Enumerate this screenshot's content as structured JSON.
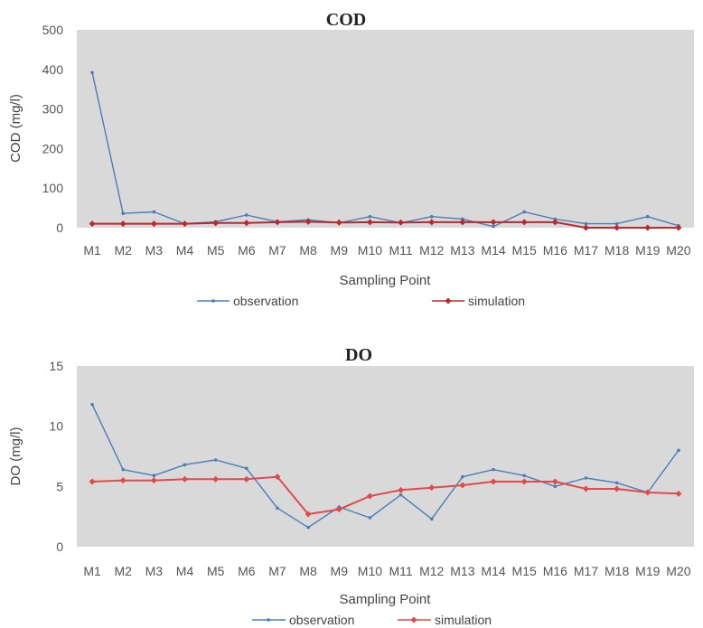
{
  "chart_data": [
    {
      "type": "line",
      "title": "COD",
      "xlabel": "Sampling Point",
      "ylabel": "COD (mg/l)",
      "ylim": [
        0,
        500
      ],
      "yticks": [
        "0",
        "100",
        "200",
        "300",
        "400",
        "500"
      ],
      "grid": false,
      "legend": "bottom",
      "categories": [
        "M1",
        "M2",
        "M3",
        "M4",
        "M5",
        "M6",
        "M7",
        "M8",
        "M9",
        "M10",
        "M11",
        "M12",
        "M13",
        "M14",
        "M15",
        "M16",
        "M17",
        "M18",
        "M19",
        "M20"
      ],
      "series": [
        {
          "name": "observation",
          "color": "#4a7ebb",
          "marker": "dot",
          "values": [
            392,
            36,
            40,
            10,
            15,
            32,
            15,
            20,
            12,
            28,
            12,
            28,
            22,
            3,
            40,
            22,
            10,
            10,
            28,
            5
          ]
        },
        {
          "name": "simulation",
          "color": "#c0272d",
          "marker": "diamond",
          "values": [
            10,
            10,
            10,
            10,
            12,
            12,
            14,
            15,
            13,
            14,
            13,
            14,
            14,
            14,
            14,
            14,
            0,
            0,
            0,
            0
          ]
        }
      ]
    },
    {
      "type": "line",
      "title": "DO",
      "xlabel": "Sampling Point",
      "ylabel": "DO (mg/l)",
      "ylim": [
        0,
        15
      ],
      "yticks": [
        "0",
        "5",
        "10",
        "15"
      ],
      "grid": false,
      "legend": "bottom",
      "categories": [
        "M1",
        "M2",
        "M3",
        "M4",
        "M5",
        "M6",
        "M7",
        "M8",
        "M9",
        "M10",
        "M11",
        "M12",
        "M13",
        "M14",
        "M15",
        "M16",
        "M17",
        "M18",
        "M19",
        "M20"
      ],
      "series": [
        {
          "name": "observation",
          "color": "#4a7ebb",
          "marker": "dot",
          "values": [
            11.8,
            6.4,
            5.9,
            6.8,
            7.2,
            6.5,
            3.2,
            1.6,
            3.3,
            2.4,
            4.3,
            2.3,
            5.8,
            6.4,
            5.9,
            5.0,
            5.7,
            5.3,
            4.5,
            8.0
          ]
        },
        {
          "name": "simulation",
          "color": "#e04a4a",
          "marker": "diamond",
          "values": [
            5.4,
            5.5,
            5.5,
            5.6,
            5.6,
            5.6,
            5.8,
            2.7,
            3.1,
            4.2,
            4.7,
            4.9,
            5.1,
            5.4,
            5.4,
            5.4,
            4.8,
            4.8,
            4.5,
            4.4
          ]
        }
      ]
    }
  ]
}
